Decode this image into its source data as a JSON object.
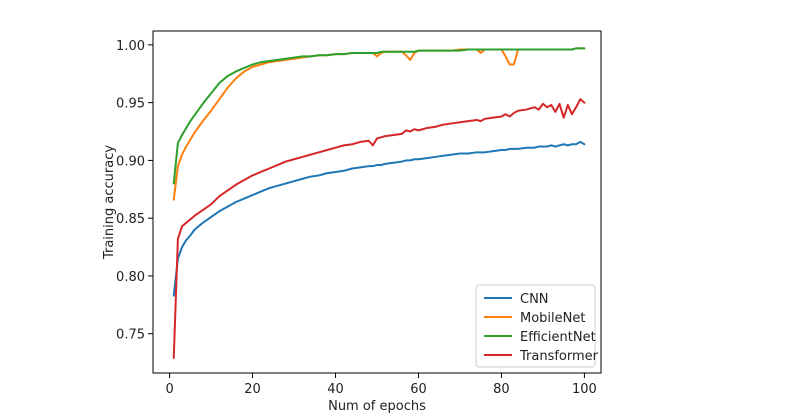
{
  "chart_data": {
    "type": "line",
    "xlabel": "Num of epochs",
    "ylabel": "Training accuracy",
    "xlim": [
      -4,
      104
    ],
    "ylim": [
      0.716,
      1.012
    ],
    "xticks": [
      0,
      20,
      40,
      60,
      80,
      100
    ],
    "yticks": [
      0.75,
      0.8,
      0.85,
      0.9,
      0.95,
      1.0
    ],
    "xtick_labels": [
      "0",
      "20",
      "40",
      "60",
      "80",
      "100"
    ],
    "ytick_labels": [
      "0.75",
      "0.80",
      "0.85",
      "0.90",
      "0.95",
      "1.00"
    ],
    "grid": false,
    "legend_position": "bottom-right",
    "x": [
      1,
      2,
      3,
      4,
      5,
      6,
      8,
      10,
      12,
      14,
      16,
      18,
      20,
      22,
      24,
      26,
      28,
      30,
      32,
      34,
      36,
      38,
      40,
      42,
      44,
      46,
      48,
      49,
      50,
      51,
      52,
      54,
      56,
      57,
      58,
      59,
      60,
      62,
      64,
      66,
      68,
      70,
      72,
      74,
      75,
      76,
      78,
      80,
      81,
      82,
      83,
      84,
      86,
      88,
      89,
      90,
      91,
      92,
      93,
      94,
      95,
      96,
      97,
      98,
      99,
      100
    ],
    "series": [
      {
        "name": "CNN",
        "color": "#1f77b4",
        "values": [
          0.783,
          0.815,
          0.825,
          0.831,
          0.835,
          0.84,
          0.846,
          0.851,
          0.856,
          0.86,
          0.864,
          0.867,
          0.87,
          0.873,
          0.876,
          0.878,
          0.88,
          0.882,
          0.884,
          0.886,
          0.887,
          0.889,
          0.89,
          0.891,
          0.893,
          0.894,
          0.895,
          0.895,
          0.896,
          0.896,
          0.897,
          0.898,
          0.899,
          0.9,
          0.9,
          0.901,
          0.901,
          0.902,
          0.903,
          0.904,
          0.905,
          0.906,
          0.906,
          0.907,
          0.907,
          0.907,
          0.908,
          0.909,
          0.909,
          0.91,
          0.91,
          0.91,
          0.911,
          0.911,
          0.912,
          0.912,
          0.912,
          0.913,
          0.912,
          0.913,
          0.914,
          0.913,
          0.914,
          0.914,
          0.916,
          0.914
        ]
      },
      {
        "name": "MobileNet",
        "color": "#ff7f0e",
        "values": [
          0.866,
          0.895,
          0.905,
          0.912,
          0.918,
          0.924,
          0.934,
          0.943,
          0.953,
          0.963,
          0.971,
          0.977,
          0.981,
          0.983,
          0.985,
          0.986,
          0.987,
          0.988,
          0.989,
          0.99,
          0.991,
          0.991,
          0.992,
          0.992,
          0.993,
          0.993,
          0.993,
          0.993,
          0.99,
          0.993,
          0.994,
          0.994,
          0.994,
          0.991,
          0.987,
          0.993,
          0.995,
          0.995,
          0.995,
          0.995,
          0.995,
          0.996,
          0.996,
          0.996,
          0.993,
          0.996,
          0.996,
          0.996,
          0.99,
          0.983,
          0.983,
          0.996,
          0.996,
          0.996,
          0.996,
          0.996,
          0.996,
          0.996,
          0.996,
          0.996,
          0.996,
          0.996,
          0.996,
          0.997,
          0.997,
          0.997
        ]
      },
      {
        "name": "EfficientNet",
        "color": "#2ca02c",
        "values": [
          0.88,
          0.915,
          0.922,
          0.928,
          0.934,
          0.939,
          0.949,
          0.958,
          0.967,
          0.973,
          0.977,
          0.98,
          0.983,
          0.985,
          0.986,
          0.987,
          0.988,
          0.989,
          0.99,
          0.99,
          0.991,
          0.991,
          0.992,
          0.992,
          0.993,
          0.993,
          0.993,
          0.993,
          0.993,
          0.994,
          0.994,
          0.994,
          0.994,
          0.994,
          0.994,
          0.994,
          0.995,
          0.995,
          0.995,
          0.995,
          0.995,
          0.995,
          0.996,
          0.996,
          0.996,
          0.996,
          0.996,
          0.996,
          0.996,
          0.996,
          0.996,
          0.996,
          0.996,
          0.996,
          0.996,
          0.996,
          0.996,
          0.996,
          0.996,
          0.996,
          0.996,
          0.996,
          0.996,
          0.997,
          0.997,
          0.997
        ]
      },
      {
        "name": "Transformer",
        "color": "#d62728",
        "values": [
          0.729,
          0.832,
          0.843,
          0.846,
          0.849,
          0.852,
          0.857,
          0.862,
          0.869,
          0.874,
          0.879,
          0.883,
          0.887,
          0.89,
          0.893,
          0.896,
          0.899,
          0.901,
          0.903,
          0.905,
          0.907,
          0.909,
          0.911,
          0.913,
          0.914,
          0.916,
          0.917,
          0.913,
          0.919,
          0.92,
          0.921,
          0.922,
          0.923,
          0.926,
          0.925,
          0.927,
          0.926,
          0.928,
          0.929,
          0.931,
          0.932,
          0.933,
          0.934,
          0.935,
          0.934,
          0.936,
          0.937,
          0.938,
          0.94,
          0.938,
          0.941,
          0.943,
          0.944,
          0.946,
          0.944,
          0.949,
          0.946,
          0.948,
          0.942,
          0.949,
          0.937,
          0.948,
          0.94,
          0.946,
          0.953,
          0.95
        ]
      }
    ]
  }
}
